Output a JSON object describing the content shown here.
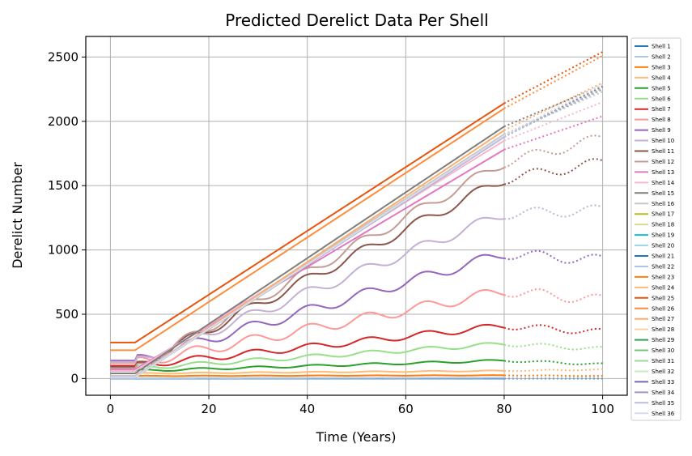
{
  "chart_data": {
    "type": "line",
    "title": "Predicted Derelict Data Per Shell",
    "xlabel": "Time (Years)",
    "ylabel": "Derelict Number",
    "xlim": [
      -5,
      105
    ],
    "ylim": [
      -130,
      2660
    ],
    "xticks": [
      0,
      20,
      40,
      60,
      80,
      100
    ],
    "yticks": [
      0,
      500,
      1000,
      1500,
      2000,
      2500
    ],
    "grid": true,
    "legend_position": "right-outside",
    "observed_range": [
      0,
      80
    ],
    "predicted_range": [
      80,
      100
    ],
    "predicted_style": "dotted",
    "series": [
      {
        "name": "Shell 1",
        "color": "#1f77b4",
        "start": 0,
        "end80": 0,
        "end100": 0
      },
      {
        "name": "Shell 2",
        "color": "#aec7e8",
        "start": 2,
        "end80": 5,
        "end100": 6
      },
      {
        "name": "Shell 3",
        "color": "#ff7f0e",
        "start": 20,
        "end80": 25,
        "end100": 20
      },
      {
        "name": "Shell 4",
        "color": "#ffbb78",
        "start": 40,
        "end80": 60,
        "end100": 70
      },
      {
        "name": "Shell 5",
        "color": "#2ca02c",
        "start": 60,
        "end80": 140,
        "end100": 110
      },
      {
        "name": "Shell 6",
        "color": "#98df8a",
        "start": 80,
        "end80": 270,
        "end100": 230
      },
      {
        "name": "Shell 7",
        "color": "#d62728",
        "start": 100,
        "end80": 410,
        "end100": 360
      },
      {
        "name": "Shell 8",
        "color": "#ff9896",
        "start": 120,
        "end80": 680,
        "end100": 610
      },
      {
        "name": "Shell 9",
        "color": "#9467bd",
        "start": 140,
        "end80": 970,
        "end100": 920
      },
      {
        "name": "Shell 10",
        "color": "#c5b0d5",
        "start": 130,
        "end80": 1280,
        "end100": 1310
      },
      {
        "name": "Shell 11",
        "color": "#8c564b",
        "start": 90,
        "end80": 1550,
        "end100": 1680
      },
      {
        "name": "Shell 12",
        "color": "#c49c94",
        "start": 80,
        "end80": 1680,
        "end100": 1870
      },
      {
        "name": "Shell 13",
        "color": "#e377c2",
        "start": 70,
        "end80": 1780,
        "end100": 2040
      },
      {
        "name": "Shell 14",
        "color": "#f7b6d2",
        "start": 60,
        "end80": 1850,
        "end100": 2150
      },
      {
        "name": "Shell 15",
        "color": "#7f7f7f",
        "start": 40,
        "end80": 1960,
        "end100": 2280
      },
      {
        "name": "Shell 16",
        "color": "#c7c7c7",
        "start": 20,
        "end80": 1900,
        "end100": 2230
      },
      {
        "name": "Shell 17",
        "color": "#bcbd22",
        "start": 10,
        "end80": 1880,
        "end100": 2270
      },
      {
        "name": "Shell 18",
        "color": "#dbdb8d",
        "start": 10,
        "end80": 1880,
        "end100": 2280
      },
      {
        "name": "Shell 19",
        "color": "#17becf",
        "start": 10,
        "end80": 1880,
        "end100": 2260
      },
      {
        "name": "Shell 20",
        "color": "#9edae5",
        "start": 10,
        "end80": 1890,
        "end100": 2250
      },
      {
        "name": "Shell 21",
        "color": "#1f77b4",
        "start": 10,
        "end80": 1880,
        "end100": 2260
      },
      {
        "name": "Shell 22",
        "color": "#aec7e8",
        "start": 10,
        "end80": 1890,
        "end100": 2290
      },
      {
        "name": "Shell 23",
        "color": "#ff7f0e",
        "start": 10,
        "end80": 1880,
        "end100": 2270
      },
      {
        "name": "Shell 24",
        "color": "#ffbb78",
        "start": 10,
        "end80": 1890,
        "end100": 2250
      },
      {
        "name": "Shell 25",
        "color": "#e6550d",
        "start": 280,
        "end80": 2140,
        "end100": 2540
      },
      {
        "name": "Shell 26",
        "color": "#fd8d3c",
        "start": 220,
        "end80": 2100,
        "end100": 2510
      },
      {
        "name": "Shell 27",
        "color": "#fdae6b",
        "start": 10,
        "end80": 1930,
        "end100": 2300
      },
      {
        "name": "Shell 28",
        "color": "#fdd0a2",
        "start": 10,
        "end80": 1890,
        "end100": 2260
      },
      {
        "name": "Shell 29",
        "color": "#31a354",
        "start": 10,
        "end80": 1880,
        "end100": 2270
      },
      {
        "name": "Shell 30",
        "color": "#74c476",
        "start": 10,
        "end80": 1890,
        "end100": 2250
      },
      {
        "name": "Shell 31",
        "color": "#a1d99b",
        "start": 10,
        "end80": 1880,
        "end100": 2260
      },
      {
        "name": "Shell 32",
        "color": "#c7e9c0",
        "start": 10,
        "end80": 1890,
        "end100": 2280
      },
      {
        "name": "Shell 33",
        "color": "#756bb1",
        "start": 10,
        "end80": 1880,
        "end100": 2270
      },
      {
        "name": "Shell 34",
        "color": "#9e9ac8",
        "start": 10,
        "end80": 1890,
        "end100": 2250
      },
      {
        "name": "Shell 35",
        "color": "#bcbddc",
        "start": 10,
        "end80": 1880,
        "end100": 2260
      },
      {
        "name": "Shell 36",
        "color": "#dadaeb",
        "start": 10,
        "end80": 1890,
        "end100": 2290
      }
    ]
  }
}
